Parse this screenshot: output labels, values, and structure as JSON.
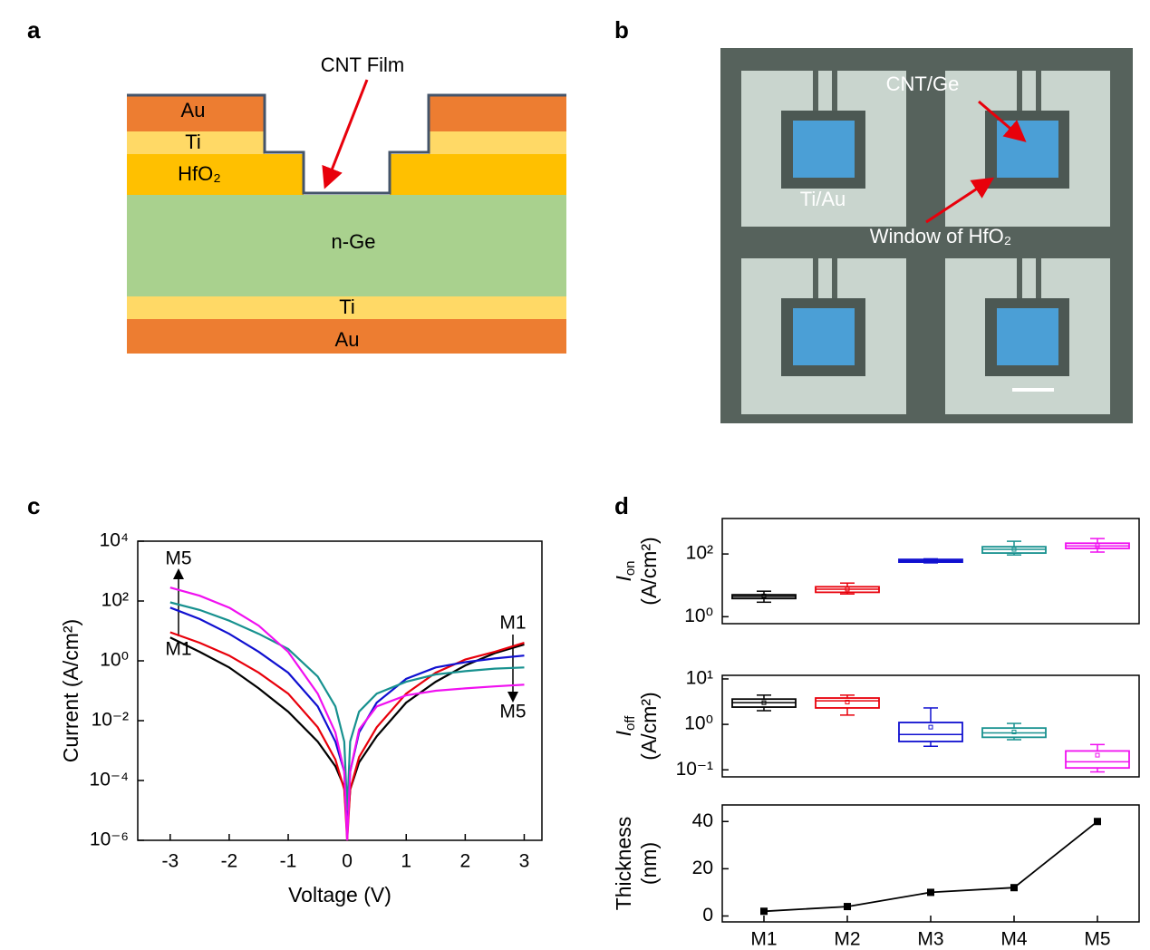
{
  "figure": {
    "panel_labels": [
      "a",
      "b",
      "c",
      "d"
    ]
  },
  "diagram": {
    "layers": [
      "Au",
      "Ti",
      "HfO₂",
      "n-Ge",
      "Ti",
      "Au"
    ],
    "callout": "CNT Film"
  },
  "micrograph": {
    "labels": [
      "CNT/Ge",
      "Ti/Au",
      "Window of HfO₂"
    ]
  },
  "chart_data": [
    {
      "type": "line",
      "log_y": true,
      "xlabel": "Voltage (V)",
      "ylabel": "Current (A/cm²)",
      "annotations": [
        "M5",
        "M1",
        "M1",
        "M5"
      ],
      "x": [
        -3,
        -2.5,
        -2,
        -1.5,
        -1,
        -0.5,
        -0.2,
        -0.05,
        0,
        0.05,
        0.2,
        0.5,
        1,
        1.5,
        2,
        2.5,
        3
      ],
      "series": [
        {
          "color": "#000000",
          "values": [
            6,
            2,
            0.6,
            0.12,
            0.02,
            0.002,
            0.0003,
            6e-05,
            2e-06,
            5e-05,
            0.0004,
            0.003,
            0.04,
            0.2,
            0.7,
            1.8,
            3.5
          ]
        },
        {
          "color": "#e8000b",
          "values": [
            9,
            4,
            1.5,
            0.4,
            0.08,
            0.006,
            0.0005,
            5e-05,
            1e-06,
            5e-05,
            0.0006,
            0.006,
            0.08,
            0.4,
            1.1,
            2,
            4
          ]
        },
        {
          "color": "#1010d0",
          "values": [
            60,
            25,
            8,
            2,
            0.4,
            0.03,
            0.002,
            0.0002,
            2e-06,
            0.0002,
            0.004,
            0.04,
            0.25,
            0.6,
            0.9,
            1.2,
            1.5
          ]
        },
        {
          "color": "#17918f",
          "values": [
            90,
            50,
            22,
            8,
            2.5,
            0.3,
            0.03,
            0.002,
            1e-05,
            0.002,
            0.02,
            0.08,
            0.2,
            0.35,
            0.45,
            0.55,
            0.6
          ]
        },
        {
          "color": "#f010f0",
          "values": [
            280,
            150,
            60,
            15,
            2,
            0.08,
            0.004,
            0.0002,
            1e-06,
            0.0002,
            0.005,
            0.03,
            0.07,
            0.1,
            0.12,
            0.14,
            0.16
          ]
        }
      ],
      "xlim": [
        -3.55,
        3.3
      ],
      "xticks": [
        -3,
        -2,
        -1,
        0,
        1,
        2,
        3
      ],
      "ylim": [
        1e-06,
        10000
      ],
      "yticks": [
        {
          "value": 1e-06,
          "label": "10⁻⁶"
        },
        {
          "value": 0.0001,
          "label": "10⁻⁴"
        },
        {
          "value": 0.01,
          "label": "10⁻²"
        },
        {
          "value": 1,
          "label": "10⁰"
        },
        {
          "value": 100,
          "label": "10²"
        },
        {
          "value": 10000,
          "label": "10⁴"
        }
      ]
    },
    {
      "type": "box",
      "log_y": true,
      "ylabel": {
        "symbol": "I",
        "subscript": "on",
        "unit": "(A/cm²)"
      },
      "colors": [
        "#000000",
        "#e8000b",
        "#1010d0",
        "#17918f",
        "#f010f0"
      ],
      "boxes": [
        {
          "min": 2.9,
          "q1": 3.8,
          "median": 4.4,
          "q3": 5,
          "max": 6.5,
          "mean": 4.6
        },
        {
          "min": 5.3,
          "q1": 6,
          "median": 7.5,
          "q3": 9,
          "max": 11.8,
          "mean": 7.6
        },
        {
          "min": 52,
          "q1": 55,
          "median": 60,
          "q3": 67,
          "max": 70,
          "mean": 61
        },
        {
          "min": 93,
          "q1": 107,
          "median": 140,
          "q3": 170,
          "max": 254,
          "mean": 140
        },
        {
          "min": 115,
          "q1": 150,
          "median": 180,
          "q3": 220,
          "max": 310,
          "mean": 185
        }
      ],
      "ylim": [
        0.6,
        1350
      ],
      "yticks": [
        {
          "value": 1,
          "label": "10⁰"
        },
        {
          "value": 100,
          "label": "10²"
        }
      ]
    },
    {
      "type": "box",
      "log_y": true,
      "ylabel": {
        "symbol": "I",
        "subscript": "off",
        "unit": "(A/cm²)"
      },
      "colors": [
        "#000000",
        "#e8000b",
        "#1010d0",
        "#17918f",
        "#f010f0"
      ],
      "boxes": [
        {
          "min": 2,
          "q1": 2.4,
          "median": 3,
          "q3": 3.6,
          "max": 4.4,
          "mean": 3
        },
        {
          "min": 1.6,
          "q1": 2.3,
          "median": 3.3,
          "q3": 3.8,
          "max": 4.4,
          "mean": 3.1
        },
        {
          "min": 0.33,
          "q1": 0.42,
          "median": 0.6,
          "q3": 1.1,
          "max": 2.3,
          "mean": 0.87
        },
        {
          "min": 0.46,
          "q1": 0.52,
          "median": 0.65,
          "q3": 0.83,
          "max": 1.05,
          "mean": 0.68
        },
        {
          "min": 0.09,
          "q1": 0.11,
          "median": 0.15,
          "q3": 0.26,
          "max": 0.36,
          "mean": 0.21
        }
      ],
      "ylim": [
        0.07,
        12
      ],
      "yticks": [
        {
          "value": 0.1,
          "label": "10⁻¹"
        },
        {
          "value": 1,
          "label": "10⁰"
        },
        {
          "value": 10,
          "label": "10¹"
        }
      ]
    },
    {
      "type": "line",
      "ylabel": [
        "Thickness",
        "(nm)"
      ],
      "categories": [
        "M1",
        "M2",
        "M3",
        "M4",
        "M5"
      ],
      "values": [
        2,
        4,
        10,
        12,
        40
      ],
      "color": "#000000",
      "ylim": [
        -2.5,
        47
      ],
      "yticks": [
        0,
        20,
        40
      ]
    }
  ]
}
